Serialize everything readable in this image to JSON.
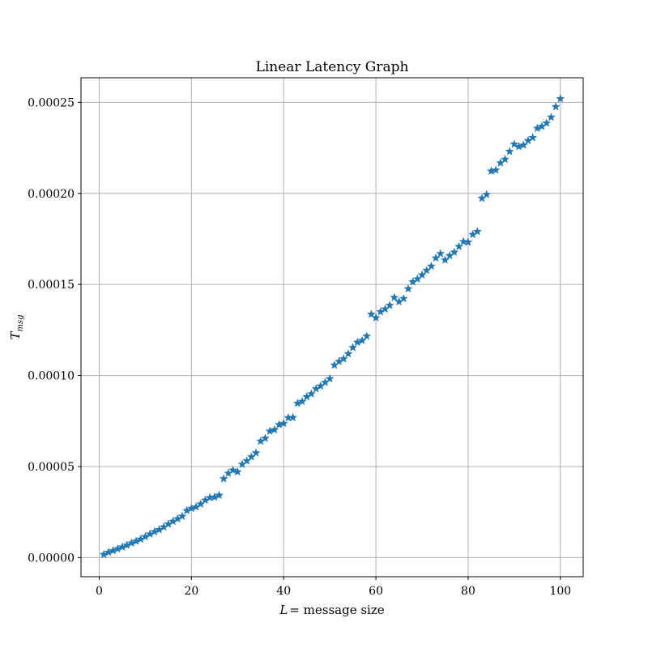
{
  "chart_data": {
    "type": "scatter",
    "title": "Linear Latency Graph",
    "xlabel_var": "L",
    "xlabel_text": "= message size",
    "ylabel_var": "T",
    "ylabel_sub": "msg",
    "xlim": [
      -3.95,
      104.95
    ],
    "ylim": [
      -1.05e-05,
      0.0002635
    ],
    "xticks": [
      0,
      20,
      40,
      60,
      80,
      100
    ],
    "xtick_labels": [
      "0",
      "20",
      "40",
      "60",
      "80",
      "100"
    ],
    "yticks": [
      0,
      5e-05,
      0.0001,
      0.00015,
      0.0002,
      0.00025
    ],
    "ytick_labels": [
      "0.00000",
      "0.00005",
      "0.00010",
      "0.00015",
      "0.00020",
      "0.00025"
    ],
    "grid": true,
    "marker": "star",
    "color": "#1f77b4",
    "series": [
      {
        "x": [
          1,
          2,
          3,
          4,
          5,
          6,
          7,
          8,
          9,
          10,
          11,
          12,
          13,
          14,
          15,
          16,
          17,
          18,
          19,
          20,
          21,
          22,
          23,
          24,
          25,
          26,
          27,
          28,
          29,
          30,
          31,
          32,
          33,
          34,
          35,
          36,
          37,
          38,
          39,
          40,
          41,
          42,
          43,
          44,
          45,
          46,
          47,
          48,
          49,
          50,
          51,
          52,
          53,
          54,
          55,
          56,
          57,
          58,
          59,
          60,
          61,
          62,
          63,
          64,
          65,
          66,
          67,
          68,
          69,
          70,
          71,
          72,
          73,
          74,
          75,
          76,
          77,
          78,
          79,
          80,
          81,
          82,
          83,
          84,
          85,
          86,
          87,
          88,
          89,
          90,
          91,
          92,
          93,
          94,
          95,
          96,
          97,
          98,
          99,
          100
        ],
        "y": [
          1.7e-06,
          2.9e-06,
          3.8e-06,
          4.8e-06,
          5.8e-06,
          6.8e-06,
          8e-06,
          9e-06,
          1.01e-05,
          1.15e-05,
          1.29e-05,
          1.42e-05,
          1.53e-05,
          1.68e-05,
          1.84e-05,
          1.99e-05,
          2.13e-05,
          2.27e-05,
          2.58e-05,
          2.7e-05,
          2.78e-05,
          2.94e-05,
          3.15e-05,
          3.29e-05,
          3.32e-05,
          3.42e-05,
          4.33e-05,
          4.63e-05,
          4.8e-05,
          4.71e-05,
          5.12e-05,
          5.31e-05,
          5.53e-05,
          5.75e-05,
          6.39e-05,
          6.55e-05,
          6.94e-05,
          7.02e-05,
          7.3e-05,
          7.37e-05,
          7.68e-05,
          7.69e-05,
          8.47e-05,
          8.57e-05,
          8.83e-05,
          8.99e-05,
          9.27e-05,
          9.42e-05,
          9.62e-05,
          9.82e-05,
          0.0001057,
          0.0001077,
          0.0001091,
          0.0001119,
          0.0001153,
          0.0001182,
          0.0001192,
          0.0001216,
          0.0001336,
          0.0001317,
          0.000135,
          0.0001365,
          0.0001385,
          0.0001428,
          0.0001405,
          0.0001422,
          0.0001476,
          0.0001514,
          0.000153,
          0.0001552,
          0.0001577,
          0.00016,
          0.0001645,
          0.0001669,
          0.0001634,
          0.0001658,
          0.0001677,
          0.0001708,
          0.0001735,
          0.0001732,
          0.0001774,
          0.000179,
          0.0001973,
          0.0001994,
          0.0002122,
          0.0002128,
          0.0002167,
          0.0002187,
          0.000223,
          0.000227,
          0.0002257,
          0.0002265,
          0.000229,
          0.0002306,
          0.0002357,
          0.0002368,
          0.0002386,
          0.0002418,
          0.0002476,
          0.000252
        ]
      }
    ]
  }
}
